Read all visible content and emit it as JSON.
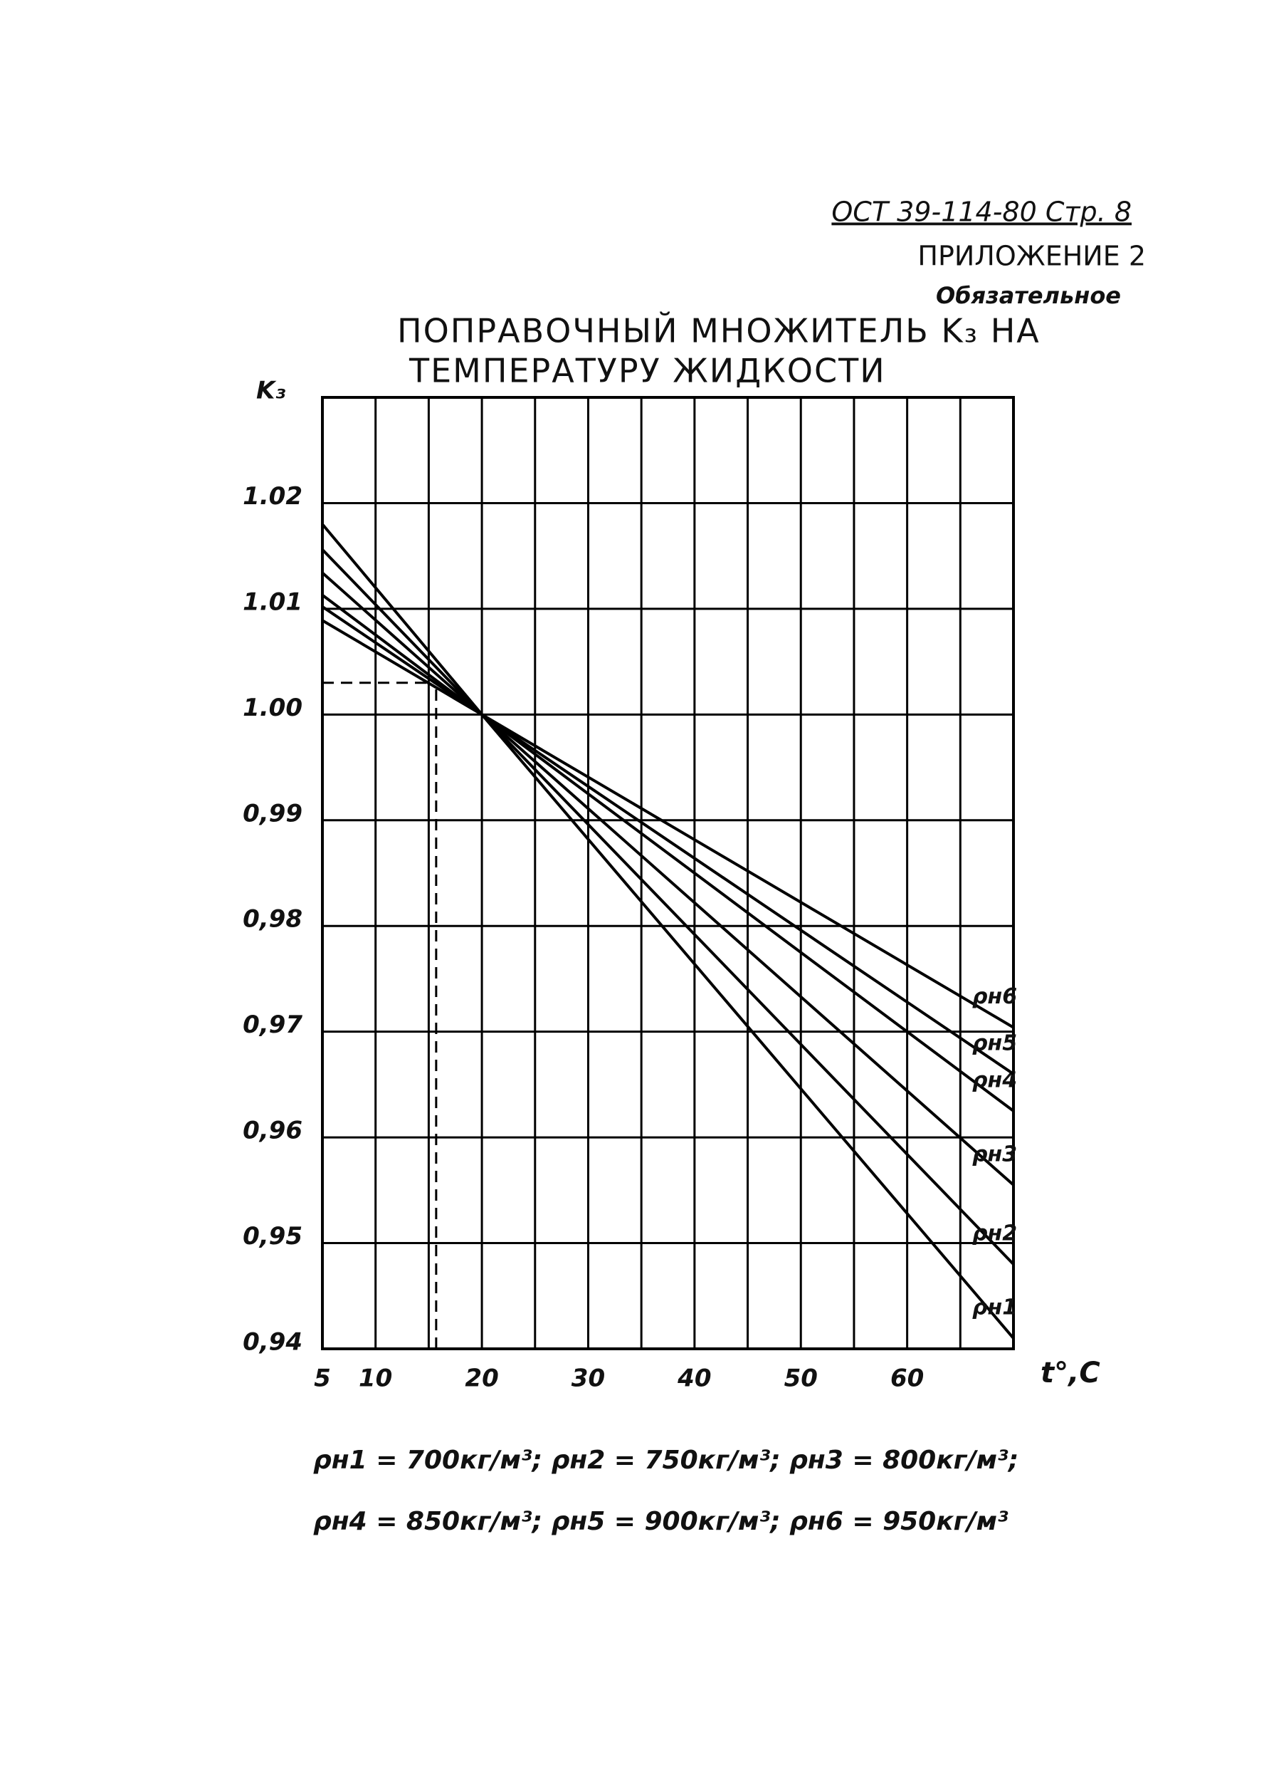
{
  "header": {
    "code": "ОСТ 39-114-80 Стр. 8",
    "appendix": "ПРИЛОЖЕНИЕ 2",
    "status": "Обязательное"
  },
  "chart_data": {
    "type": "line",
    "title_lines": [
      "ПОПРАВОЧНЫЙ МНОЖИТЕЛЬ K₃ НА",
      "ТЕМПЕРАТУРУ ЖИДКОСТИ"
    ],
    "y_label": "K₃",
    "x_label": "t°,C",
    "x": [
      5,
      20,
      70
    ],
    "series": [
      {
        "name": "ρн1",
        "color": "#000000",
        "values": [
          1.018,
          1.0,
          0.941
        ]
      },
      {
        "name": "ρн2",
        "color": "#000000",
        "values": [
          1.0156,
          1.0,
          0.948
        ]
      },
      {
        "name": "ρн3",
        "color": "#000000",
        "values": [
          1.0134,
          1.0,
          0.9555
        ]
      },
      {
        "name": "ρн4",
        "color": "#000000",
        "values": [
          1.0113,
          1.0,
          0.9625
        ]
      },
      {
        "name": "ρн5",
        "color": "#000000",
        "values": [
          1.0102,
          1.0,
          0.966
        ]
      },
      {
        "name": "ρн6",
        "color": "#000000",
        "values": [
          1.0089,
          1.0,
          0.9704
        ]
      }
    ],
    "xlim": [
      5,
      70
    ],
    "ylim": [
      0.94,
      1.03
    ],
    "xticks": [
      5,
      10,
      20,
      30,
      40,
      50,
      60
    ],
    "xgrid_minor": [
      15,
      25,
      35,
      45,
      55,
      65,
      70
    ],
    "yticks": [
      {
        "value": 0.94,
        "label": "0,94"
      },
      {
        "value": 0.95,
        "label": "0,95"
      },
      {
        "value": 0.96,
        "label": "0,96"
      },
      {
        "value": 0.97,
        "label": "0,97"
      },
      {
        "value": 0.98,
        "label": "0,98"
      },
      {
        "value": 0.99,
        "label": "0,99"
      },
      {
        "value": 1.0,
        "label": "1.00"
      },
      1.01,
      1.02
    ],
    "grid": true,
    "guide": {
      "x": 15.7,
      "y": 1.003
    },
    "notes": [
      "ρн1 = 700кг/м³; ρн2 = 750кг/м³; ρн3 = 800кг/м³;",
      "ρн4 = 850кг/м³; ρн5 = 900кг/м³; ρн6 = 950кг/м³"
    ]
  }
}
